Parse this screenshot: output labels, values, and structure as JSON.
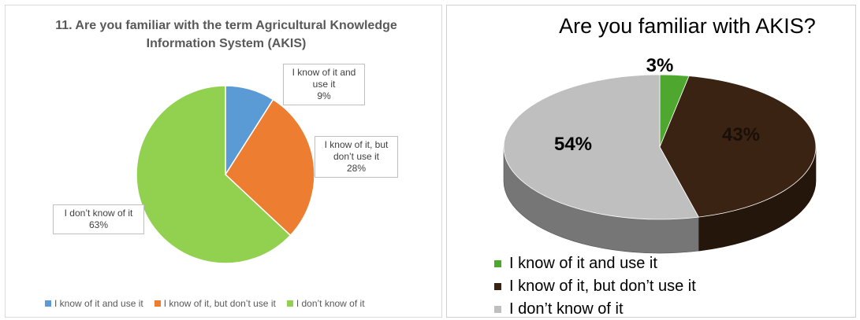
{
  "chart_data": [
    {
      "type": "pie",
      "title": "11. Are you familiar with the term Agricultural Knowledge Information System (AKIS)",
      "categories": [
        "I know of it and use it",
        "I know of it, but don’t use it",
        "I don’t know of it"
      ],
      "values": [
        9,
        28,
        63
      ],
      "value_labels": [
        "9%",
        "28%",
        "63%"
      ],
      "colors": [
        "#5b9bd5",
        "#ed7d31",
        "#92d050"
      ],
      "legend_position": "bottom"
    },
    {
      "type": "pie",
      "title": "Are you familiar with AKIS?",
      "categories": [
        "I know of it and use it",
        "I know of it, but don’t use it",
        "I don’t know of it"
      ],
      "values": [
        3,
        43,
        54
      ],
      "value_labels": [
        "3%",
        "43%",
        "54%"
      ],
      "colors": [
        "#4ea72e",
        "#3b2314",
        "#bfbfbf"
      ],
      "legend_position": "bottom-left",
      "style": "3d"
    }
  ]
}
